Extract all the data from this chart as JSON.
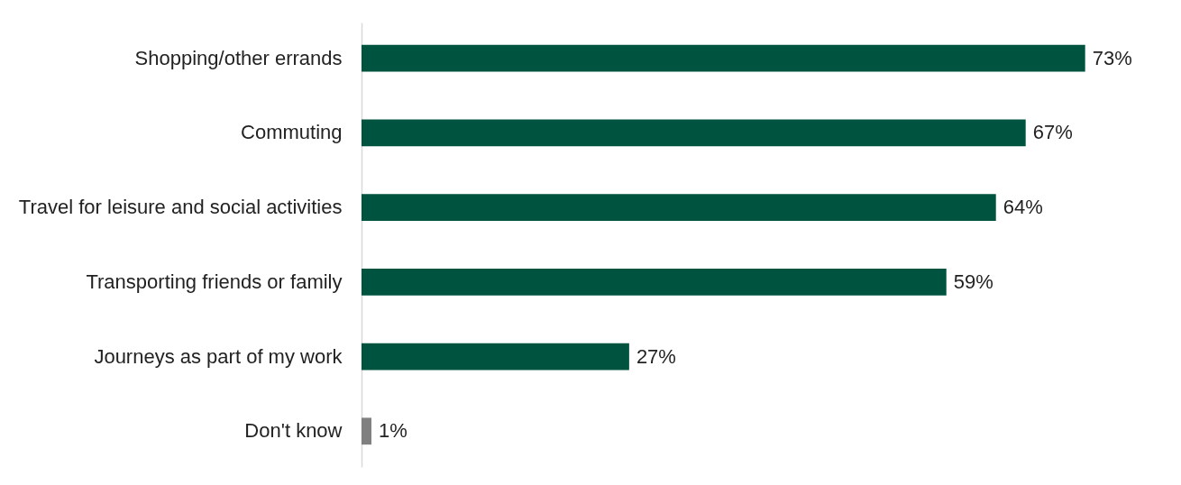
{
  "chart_data": {
    "type": "bar",
    "orientation": "horizontal",
    "categories": [
      "Shopping/other errands",
      "Commuting",
      "Travel for leisure and social activities",
      "Transporting friends or family",
      "Journeys as part of my work",
      "Don't know"
    ],
    "values": [
      73,
      67,
      64,
      59,
      27,
      1
    ],
    "colors": [
      "#00543f",
      "#00543f",
      "#00543f",
      "#00543f",
      "#00543f",
      "#808080"
    ],
    "value_labels": [
      "73%",
      "67%",
      "64%",
      "59%",
      "27%",
      "1%"
    ],
    "grid": false
  }
}
